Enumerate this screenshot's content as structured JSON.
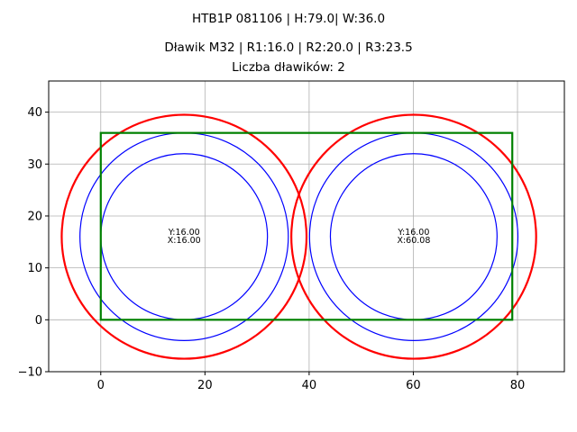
{
  "titles": {
    "line1": "HTB1P 081106 | H:79.0| W:36.0",
    "line2": "Dławik M32 | R1:16.0 | R2:20.0 | R3:23.5",
    "line3": "Liczba dławików: 2"
  },
  "chart_data": {
    "type": "scatter",
    "xlim": [
      -10,
      89
    ],
    "ylim": [
      -10,
      46
    ],
    "x_ticks": [
      0,
      20,
      40,
      60,
      80
    ],
    "y_ticks": [
      -10,
      0,
      10,
      20,
      30,
      40
    ],
    "grid": true,
    "rectangle": {
      "x": 0,
      "y": 0,
      "width": 79.0,
      "height": 36.0,
      "color": "#008000"
    },
    "circle_colors": {
      "R1": "#0000ff",
      "R2": "#0000ff",
      "R3": "#ff0000"
    },
    "radii": {
      "R1": 16.0,
      "R2": 20.0,
      "R3": 23.5
    },
    "centers": [
      {
        "x": 16.0,
        "y": 16.0,
        "label_y": "Y:16.00",
        "label_x": "X:16.00"
      },
      {
        "x": 60.08,
        "y": 16.0,
        "label_y": "Y:16.00",
        "label_x": "X:60.08"
      }
    ]
  }
}
